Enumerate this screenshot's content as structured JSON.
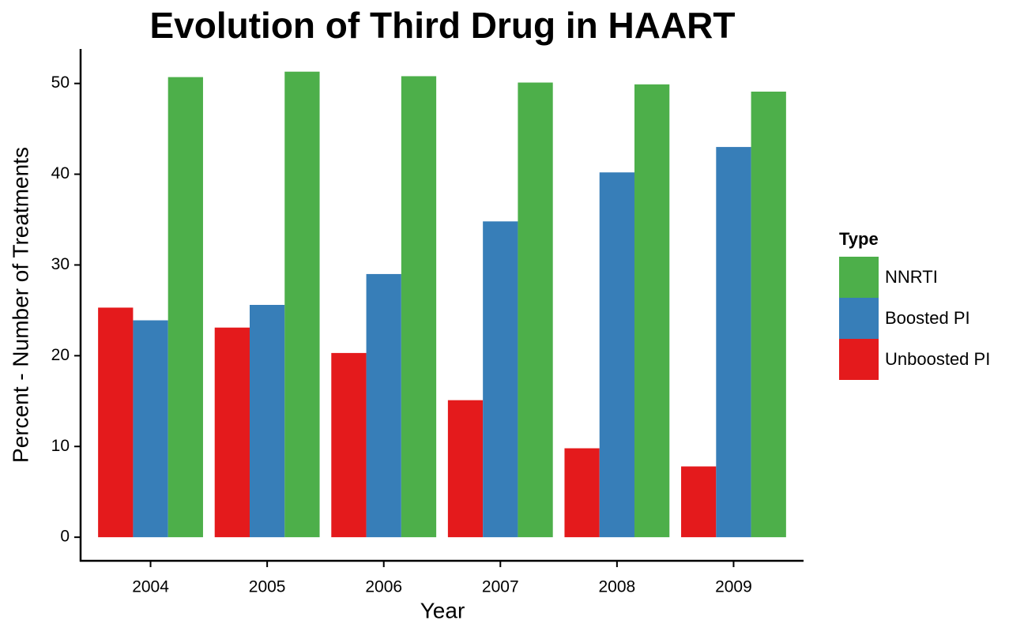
{
  "chart_data": {
    "type": "bar",
    "title": "Evolution of Third Drug in HAART",
    "x_label": "Year",
    "y_label": "Percent - Number of Treatments",
    "categories": [
      "2004",
      "2005",
      "2006",
      "2007",
      "2008",
      "2009"
    ],
    "series": [
      {
        "name": "Unboosted PI",
        "color": "#e41a1c",
        "values": [
          25.3,
          23.1,
          20.3,
          15.1,
          9.8,
          7.8
        ]
      },
      {
        "name": "Boosted PI",
        "color": "#377eb8",
        "values": [
          23.9,
          25.6,
          29.0,
          34.8,
          40.2,
          43.0
        ]
      },
      {
        "name": "NNRTI",
        "color": "#4daf4a",
        "values": [
          50.7,
          51.3,
          50.8,
          50.1,
          49.9,
          49.1
        ]
      }
    ],
    "legend_title": "Type",
    "legend_position": "right",
    "ylim": [
      -2.6,
      53.8
    ],
    "yticks": [
      0,
      10,
      20,
      30,
      40,
      50
    ],
    "grid": false
  }
}
